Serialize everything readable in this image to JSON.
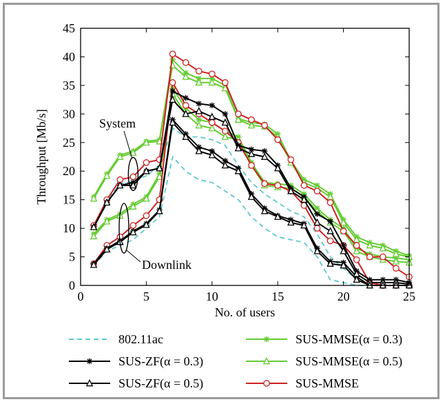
{
  "chart_data": {
    "type": "line",
    "xlabel": "No. of users",
    "ylabel": "Throughput [Mb/s]",
    "xlim": [
      0,
      25
    ],
    "ylim": [
      0,
      45
    ],
    "xticks": [
      0,
      5,
      10,
      15,
      20,
      25
    ],
    "yticks": [
      0,
      5,
      10,
      15,
      20,
      25,
      30,
      35,
      40,
      45
    ],
    "grid": false,
    "legend_position": "below",
    "annotations": [
      {
        "text": "System",
        "x": 4,
        "y": 19.5
      },
      {
        "text": "Downlink",
        "x": 3.3,
        "y": 10
      }
    ],
    "x": [
      1,
      2,
      3,
      4,
      5,
      6,
      7,
      8,
      9,
      10,
      11,
      12,
      13,
      14,
      15,
      16,
      17,
      18,
      19,
      20,
      21,
      22,
      23,
      24,
      25
    ],
    "series": [
      {
        "name": "802.11ac",
        "color": "#5fc9c9",
        "style": "dashed",
        "marker": "none",
        "group": "system",
        "values": [
          10.2,
          14.8,
          17.8,
          18.2,
          19.2,
          21,
          27.5,
          26,
          26,
          25.5,
          24.5,
          21,
          18,
          16,
          14.5,
          13,
          12,
          9,
          5,
          3,
          1,
          0,
          0,
          0,
          0
        ]
      },
      {
        "name": "802.11ac",
        "color": "#5fc9c9",
        "style": "dashed",
        "marker": "none",
        "group": "downlink",
        "values": [
          3.5,
          6,
          7,
          8,
          10,
          12,
          22.5,
          20,
          18.5,
          18,
          16.5,
          15,
          12,
          10,
          8.5,
          8,
          7.5,
          5,
          1,
          0.5,
          0,
          0,
          0,
          0,
          0
        ]
      },
      {
        "name": "SUS-ZF(α = 0.3)",
        "color": "#000000",
        "style": "solid",
        "marker": "star",
        "group": "system",
        "values": [
          10.2,
          14.5,
          17.5,
          18,
          20,
          20.5,
          34,
          32.8,
          31.8,
          31.5,
          30,
          24.5,
          23.8,
          23.5,
          21,
          17,
          15.5,
          12.5,
          11.2,
          7,
          2.5,
          1,
          1,
          1,
          0.5
        ]
      },
      {
        "name": "SUS-ZF(α = 0.3)",
        "color": "#000000",
        "style": "solid",
        "marker": "star",
        "group": "downlink",
        "values": [
          3.8,
          6.5,
          7.8,
          9.5,
          10.8,
          13.2,
          29,
          26.5,
          24.2,
          23.5,
          21.8,
          20.5,
          16,
          13.5,
          12.2,
          11.5,
          10.8,
          6.5,
          4.2,
          4,
          1.5,
          0,
          0,
          0,
          0
        ]
      },
      {
        "name": "SUS-ZF(α = 0.5)",
        "color": "#000000",
        "style": "solid",
        "marker": "triangle",
        "group": "system",
        "values": [
          10.2,
          14.5,
          17.5,
          17.5,
          20,
          20.5,
          32.5,
          30,
          30.5,
          29.5,
          28.5,
          24,
          23,
          22.5,
          20.5,
          16.5,
          15,
          11,
          9.5,
          6,
          2,
          0.5,
          0.5,
          0.5,
          0.2
        ]
      },
      {
        "name": "SUS-ZF(α = 0.5)",
        "color": "#000000",
        "style": "solid",
        "marker": "triangle",
        "group": "downlink",
        "values": [
          3.6,
          6.3,
          7.6,
          9.3,
          10.6,
          13,
          28.5,
          26,
          23.5,
          22.8,
          21,
          20,
          15.5,
          13,
          12,
          11,
          10.5,
          6,
          3.8,
          3.5,
          1,
          0,
          0,
          0,
          0
        ]
      },
      {
        "name": "SUS-MMSE(α = 0.3)",
        "color": "#66cc33",
        "style": "solid",
        "marker": "star",
        "group": "system",
        "values": [
          15.5,
          19.5,
          22.8,
          23.5,
          25.2,
          25.5,
          39.5,
          37.2,
          36.2,
          36.2,
          35,
          29.2,
          28.5,
          28.2,
          26.5,
          21.8,
          18.5,
          17.5,
          16,
          11.5,
          8.5,
          7.5,
          7,
          6,
          5.2
        ]
      },
      {
        "name": "SUS-MMSE(α = 0.3)",
        "color": "#66cc33",
        "style": "solid",
        "marker": "star",
        "group": "downlink",
        "values": [
          9,
          11.5,
          12.5,
          14.2,
          15.5,
          19.5,
          34.5,
          31,
          29,
          28.5,
          27,
          26,
          21.5,
          18,
          17.8,
          17.5,
          16,
          13.5,
          11.5,
          10,
          6.5,
          5.5,
          5,
          4.8,
          4.5
        ]
      },
      {
        "name": "SUS-MMSE(α = 0.5)",
        "color": "#66cc33",
        "style": "solid",
        "marker": "triangle",
        "group": "system",
        "values": [
          15.2,
          19.2,
          22.5,
          23.2,
          25,
          25.2,
          38.5,
          36.5,
          35.5,
          35.5,
          34.5,
          29,
          28,
          27.8,
          26,
          21.5,
          18,
          17,
          15.5,
          11,
          8,
          7,
          6.5,
          5.5,
          5
        ]
      },
      {
        "name": "SUS-MMSE(α = 0.5)",
        "color": "#66cc33",
        "style": "solid",
        "marker": "triangle",
        "group": "downlink",
        "values": [
          8.6,
          11.2,
          12.2,
          13.8,
          15.2,
          19,
          33.5,
          30,
          28,
          27.5,
          26,
          25.5,
          21,
          17.5,
          17.2,
          17,
          15.5,
          13,
          11,
          9.5,
          6,
          5,
          4.5,
          4.2,
          4
        ]
      },
      {
        "name": "SUS-MMSE",
        "color": "#cc2222",
        "style": "solid",
        "marker": "circle",
        "group": "system",
        "values": [
          10.5,
          15,
          18.5,
          19,
          21.5,
          22,
          40.5,
          39,
          37.5,
          37,
          35.5,
          30,
          29,
          28,
          25.5,
          22,
          17.5,
          16.5,
          14.5,
          9.5,
          7,
          5,
          5,
          3,
          1.5
        ]
      },
      {
        "name": "SUS-MMSE",
        "color": "#cc2222",
        "style": "solid",
        "marker": "circle",
        "group": "downlink",
        "values": [
          3.8,
          7,
          8.5,
          10.5,
          12.2,
          15,
          35.5,
          31.5,
          30,
          28.5,
          27,
          25,
          21,
          17.8,
          17.5,
          16.5,
          14,
          10,
          7.8,
          7,
          4.5,
          0.5,
          0,
          0,
          0
        ]
      }
    ],
    "legend": [
      {
        "label": "802.11ac",
        "series": 0
      },
      {
        "label": "SUS-MMSE(α = 0.3)",
        "series": 6
      },
      {
        "label": "SUS-ZF(α = 0.3)",
        "series": 2
      },
      {
        "label": "SUS-MMSE(α = 0.5)",
        "series": 8
      },
      {
        "label": "SUS-ZF(α = 0.5)",
        "series": 4
      },
      {
        "label": "SUS-MMSE",
        "series": 10
      }
    ]
  }
}
